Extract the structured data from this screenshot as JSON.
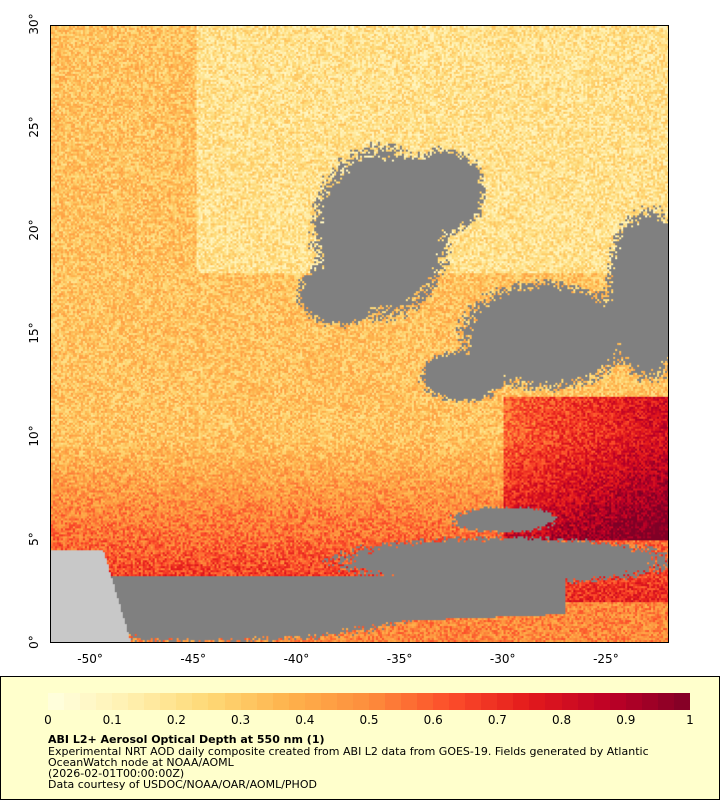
{
  "map": {
    "lon_range": [
      -52,
      -22
    ],
    "lat_range": [
      0,
      30
    ],
    "x_ticks": [
      "-50°",
      "-45°",
      "-40°",
      "-35°",
      "-30°",
      "-25°"
    ],
    "x_tick_values": [
      -50,
      -45,
      -40,
      -35,
      -30,
      -25
    ],
    "y_ticks": [
      "0°",
      "5°",
      "10°",
      "15°",
      "20°",
      "25°",
      "30°"
    ],
    "y_tick_values": [
      0,
      5,
      10,
      15,
      20,
      25,
      30
    ],
    "colors": {
      "no_data": "#808080",
      "land": "#c8c8c8",
      "river": "#6fa0d8"
    }
  },
  "legend": {
    "colorbar_range": [
      0,
      1
    ],
    "colorbar_labels": [
      "0",
      "0.1",
      "0.2",
      "0.3",
      "0.4",
      "0.5",
      "0.6",
      "0.7",
      "0.8",
      "0.9",
      "1"
    ],
    "colormap_stops": [
      "#ffffe0",
      "#fff0b0",
      "#fed976",
      "#feb24c",
      "#fd8d3c",
      "#fc4e2a",
      "#e31a1c",
      "#bd0026",
      "#800026"
    ],
    "title": "ABI L2+ Aerosol Optical Depth at 550 nm (1)",
    "line1": "Experimental NRT AOD daily composite created from ABI L2 data from GOES-19. Fields generated by Atlantic",
    "line2": "OceanWatch node at NOAA/AOML",
    "line3": "(2026-02-01T00:00:00Z)",
    "line4": "Data courtesy of USDOC/NOAA/OAR/AOML/PHOD",
    "background": "#ffffcc"
  }
}
